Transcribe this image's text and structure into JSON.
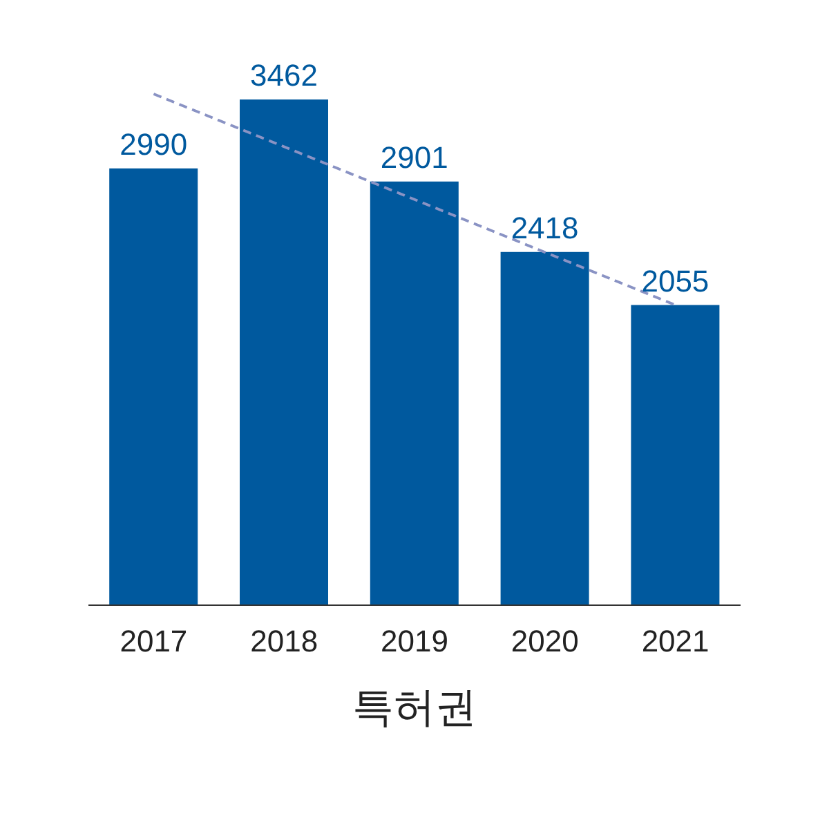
{
  "chart_data": {
    "type": "bar",
    "xlabel": "특허권",
    "categories": [
      "2017",
      "2018",
      "2019",
      "2020",
      "2021"
    ],
    "grid": false,
    "legend": false,
    "series": [
      {
        "color": "#00599e",
        "values": [
          2990,
          3462,
          2901,
          2418,
          2055
        ],
        "value_labels": [
          "2990",
          "3462",
          "2901",
          "2418",
          "2055"
        ]
      },
      {
        "type": "line",
        "color": "#8a93c4",
        "values": [
          3500,
          null,
          null,
          null,
          2055
        ],
        "line_style": "dashed",
        "marker": "none"
      }
    ]
  }
}
